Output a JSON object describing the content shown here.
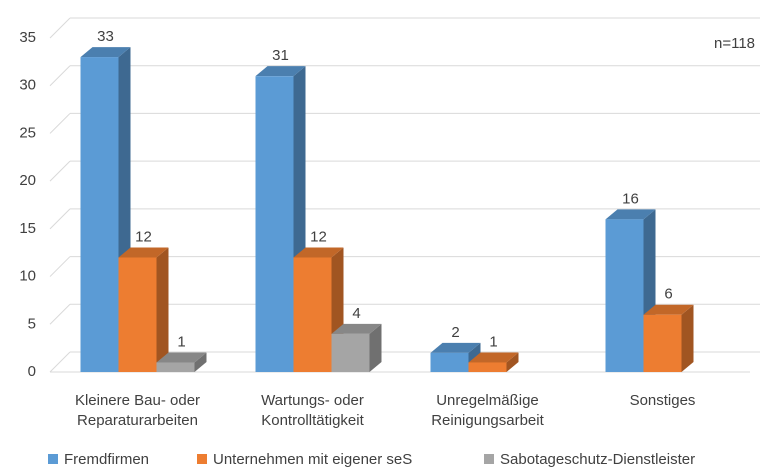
{
  "chart_data": {
    "type": "bar3d",
    "annotation": "n=118",
    "categories": [
      [
        "Kleinere Bau- oder",
        "Reparaturarbeiten"
      ],
      [
        "Wartungs- oder",
        "Kontrolltätigkeit"
      ],
      [
        "Unregelmäßige",
        "Reinigungsarbeit"
      ],
      [
        "Sonstiges"
      ]
    ],
    "series": [
      {
        "name": "Fremdfirmen",
        "color": "#5b9bd5",
        "values": [
          33,
          31,
          2,
          16
        ]
      },
      {
        "name": "Unternehmen mit eigener seS",
        "color": "#ed7d31",
        "values": [
          12,
          12,
          1,
          6
        ]
      },
      {
        "name": "Sabotageschutz-Dienstleister",
        "color": "#a5a5a5",
        "values": [
          1,
          4,
          null,
          null
        ]
      }
    ],
    "ylim": [
      0,
      35
    ],
    "yticks": [
      0,
      5,
      10,
      15,
      20,
      25,
      30,
      35
    ],
    "grid": true,
    "legend": "bottom"
  }
}
